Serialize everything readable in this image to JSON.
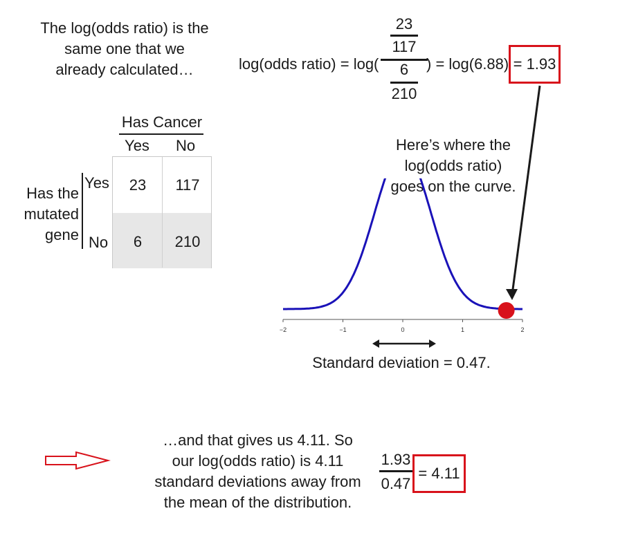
{
  "intro": {
    "line1": "The log(odds ratio) is the",
    "line2": "same one that we",
    "line3": "already calculated…"
  },
  "formula": {
    "prefix": "log(odds ratio) = log(",
    "num_top": "23",
    "num_bottom": "117",
    "den_top": "6",
    "den_bottom": "210",
    "middle": ") = log(6.88)",
    "result": "= 1.93"
  },
  "table": {
    "header": "Has Cancer",
    "col_yes": "Yes",
    "col_no": "No",
    "row_title_1": "Has the",
    "row_title_2": "mutated",
    "row_title_3": "gene",
    "row_yes": "Yes",
    "row_no": "No",
    "cells": [
      [
        "23",
        "117"
      ],
      [
        "6",
        "210"
      ]
    ]
  },
  "annotation": {
    "line1": "Here’s where the",
    "line2": "log(odds ratio)",
    "line3": "goes on the curve."
  },
  "curve": {
    "colors": {
      "curve": "#1a12b8",
      "point": "#d8121b",
      "highlight": "#d8121b",
      "table_shade": "#e7e7e7",
      "arrow_outline": "#d8121b"
    },
    "x_ticks": [
      "−2",
      "−1",
      "0",
      "1",
      "2"
    ],
    "point_value": 1.93,
    "mean": 0,
    "sd": 0.47
  },
  "sd_label": "Standard deviation = 0.47.",
  "conclusion": {
    "line1": "…and that gives us 4.11. So",
    "line2": "our log(odds ratio) is 4.11",
    "line3": "standard deviations away from",
    "line4": "the mean of the distribution."
  },
  "division": {
    "numerator": "1.93",
    "denominator": "0.47",
    "result": "= 4.11"
  }
}
